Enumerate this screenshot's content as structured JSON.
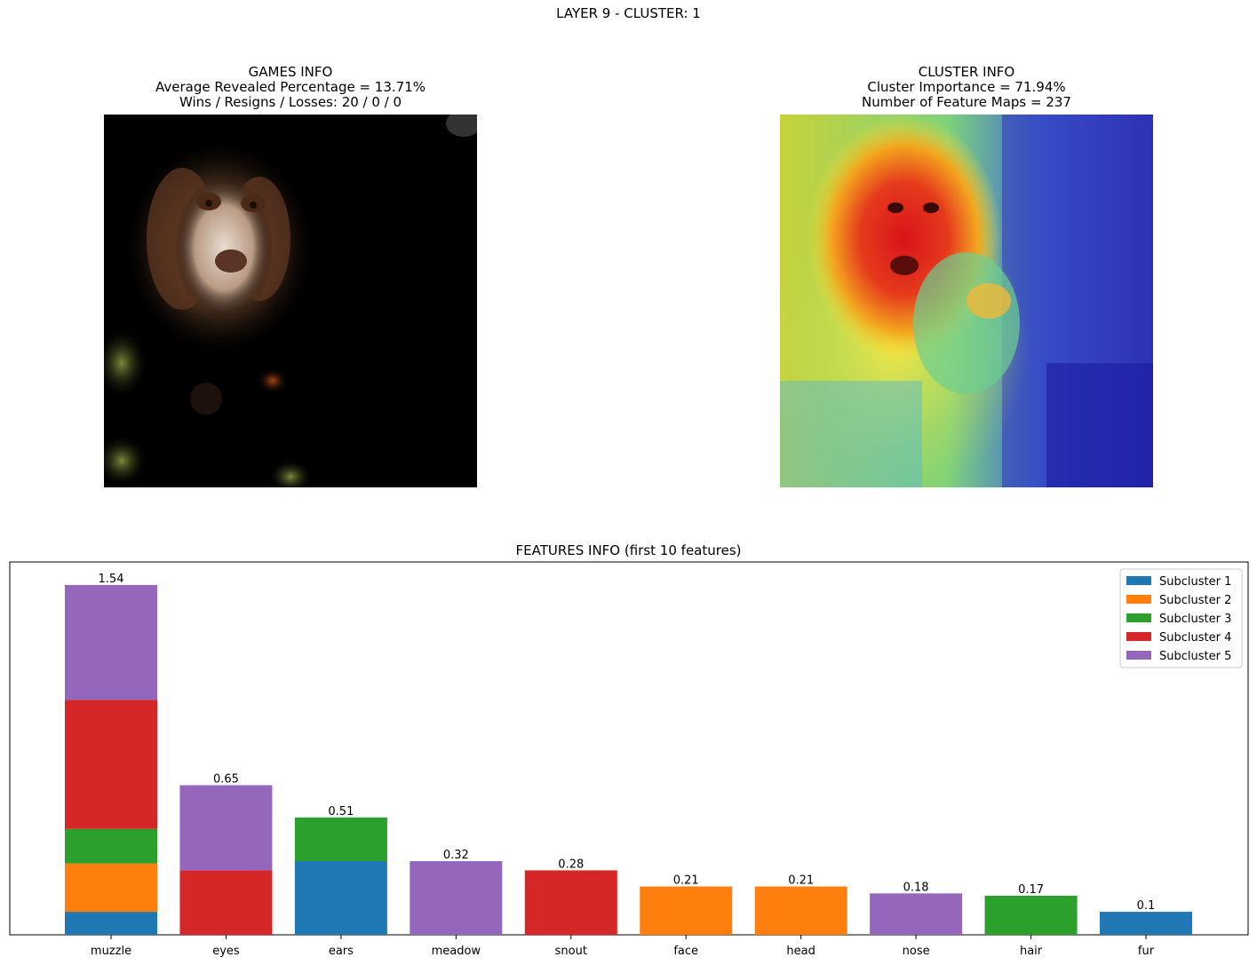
{
  "suptitle": "LAYER 9 - CLUSTER: 1",
  "games_info": {
    "title": "GAMES INFO",
    "line1": "Average Revealed Percentage = 13.71%",
    "line2": "Wins / Resigns / Losses: 20 / 0 / 0",
    "image": "masked dog photo (revealed regions on black)"
  },
  "cluster_info": {
    "title": "CLUSTER INFO",
    "line1": "Cluster Importance = 71.94%",
    "line2": "Number of Feature Maps = 237",
    "image": "dog photo with jet heatmap overlay"
  },
  "colors": {
    "Subcluster 1": "#1f77b4",
    "Subcluster 2": "#ff7f0e",
    "Subcluster 3": "#2ca02c",
    "Subcluster 4": "#d62728",
    "Subcluster 5": "#9467bd"
  },
  "chart_data": {
    "type": "bar",
    "stacked": true,
    "title": "FEATURES INFO (first 10 features)",
    "xlabel": "",
    "ylabel": "",
    "ylim": [
      0,
      1.62
    ],
    "legend_position": "top-right",
    "categories": [
      "muzzle",
      "eyes",
      "ears",
      "meadow",
      "snout",
      "face",
      "head",
      "nose",
      "hair",
      "fur"
    ],
    "totals_labels": [
      "1.54",
      "0.65",
      "0.51",
      "0.32",
      "0.28",
      "0.21",
      "0.21",
      "0.18",
      "0.17",
      "0.1"
    ],
    "series": [
      {
        "name": "Subcluster 1",
        "values": [
          0.1,
          0,
          0.32,
          0,
          0,
          0,
          0,
          0,
          0,
          0.1
        ]
      },
      {
        "name": "Subcluster 2",
        "values": [
          0.21,
          0,
          0,
          0,
          0,
          0.21,
          0.21,
          0,
          0,
          0
        ]
      },
      {
        "name": "Subcluster 3",
        "values": [
          0.15,
          0,
          0.19,
          0,
          0,
          0,
          0,
          0,
          0.17,
          0
        ]
      },
      {
        "name": "Subcluster 4",
        "values": [
          0.56,
          0.28,
          0,
          0,
          0.28,
          0,
          0,
          0,
          0,
          0
        ]
      },
      {
        "name": "Subcluster 5",
        "values": [
          0.5,
          0.37,
          0,
          0.32,
          0,
          0,
          0,
          0.18,
          0,
          0
        ]
      }
    ]
  }
}
